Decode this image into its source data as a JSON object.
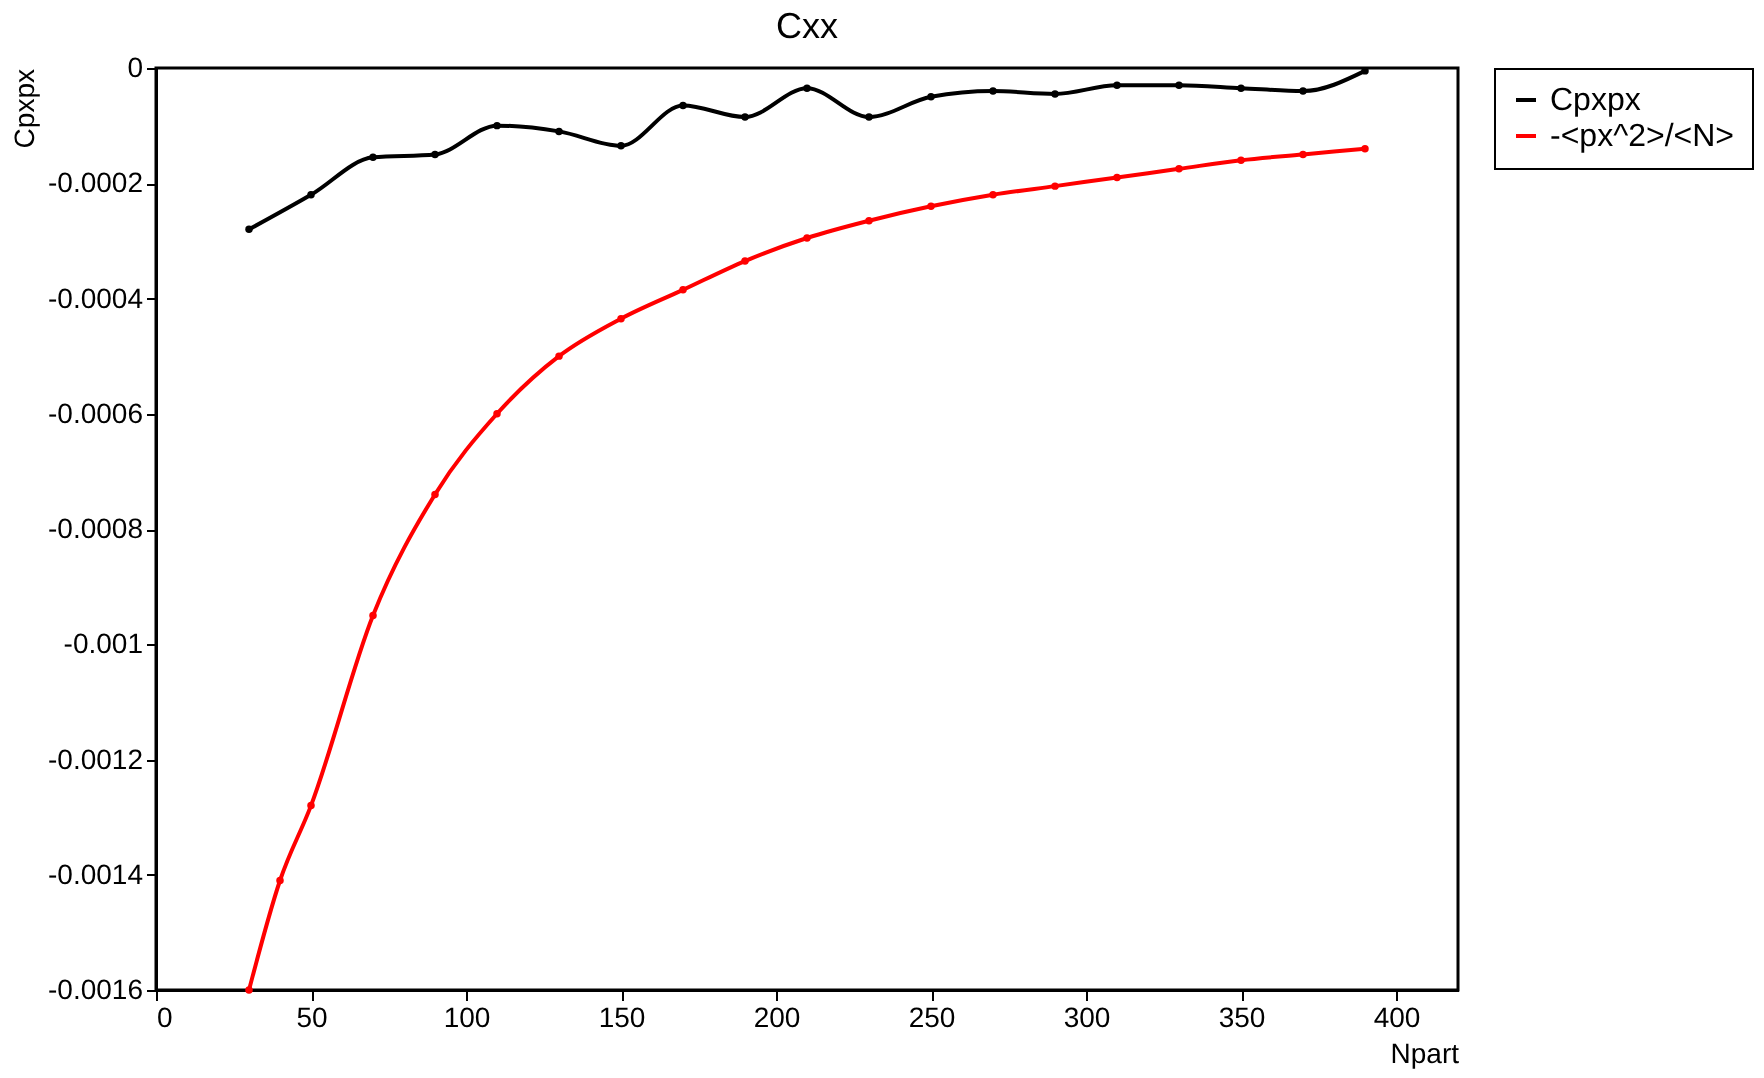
{
  "chart_data": {
    "type": "line",
    "title": "Cxx",
    "xlabel": "Npart",
    "ylabel": "Cpxpx",
    "xlim": [
      0,
      420
    ],
    "ylim": [
      -0.0016,
      0
    ],
    "xticks": [
      0,
      50,
      100,
      150,
      200,
      250,
      300,
      350,
      400
    ],
    "yticks": [
      -0.0016,
      -0.0014,
      -0.0012,
      -0.001,
      -0.0008,
      -0.0006,
      -0.0004,
      -0.0002,
      0
    ],
    "grid": false,
    "legend": "right",
    "marker": "circle",
    "line_style": "solid",
    "series": [
      {
        "name": "Cpxpx",
        "color": "#000000",
        "x": [
          30,
          50,
          70,
          90,
          110,
          130,
          150,
          170,
          190,
          210,
          230,
          250,
          270,
          290,
          310,
          330,
          350,
          370,
          390
        ],
        "values": [
          -0.00028,
          -0.00022,
          -0.000155,
          -0.00015,
          -0.0001,
          -0.00011,
          -0.000135,
          -6.5e-05,
          -8.5e-05,
          -3.5e-05,
          -8.5e-05,
          -5e-05,
          -4e-05,
          -4.5e-05,
          -3e-05,
          -3e-05,
          -3.5e-05,
          -4e-05,
          -5e-06
        ]
      },
      {
        "name": "-<px^2>/<N>",
        "color": "#ff0000",
        "x": [
          30,
          40,
          50,
          70,
          90,
          110,
          130,
          150,
          170,
          190,
          210,
          230,
          250,
          270,
          290,
          310,
          330,
          350,
          370,
          390
        ],
        "values": [
          -0.0016,
          -0.00141,
          -0.00128,
          -0.00095,
          -0.00074,
          -0.0006,
          -0.0005,
          -0.000435,
          -0.000385,
          -0.000335,
          -0.000295,
          -0.000265,
          -0.00024,
          -0.00022,
          -0.000205,
          -0.00019,
          -0.000175,
          -0.00016,
          -0.00015,
          -0.00014
        ]
      }
    ]
  }
}
